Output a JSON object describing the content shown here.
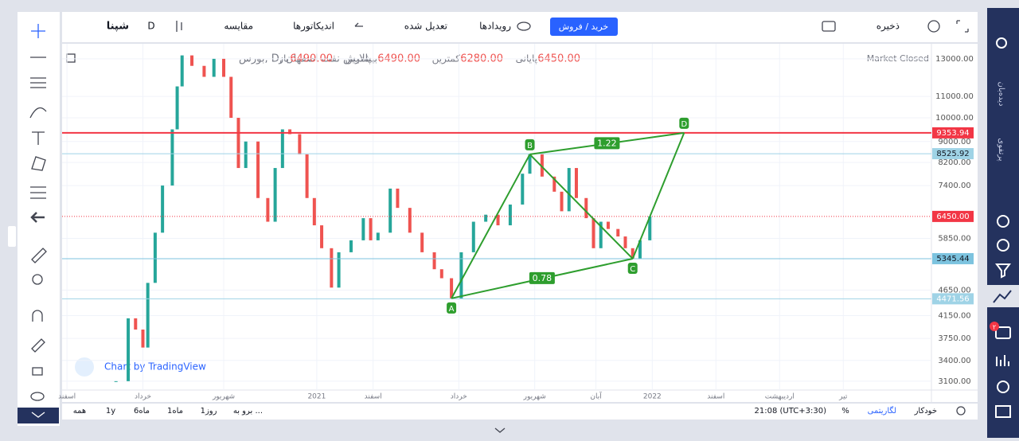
{
  "toolbar": {
    "symbol": "شپنا",
    "interval": "D",
    "compare": "مقایسه",
    "indicators": "اندیکاتورها",
    "adjusted": "تعدیل شده",
    "events": "رویدادها",
    "trade": "خرید / فروش",
    "save": "ذخیره"
  },
  "legend": {
    "title": "پالایش نفت اصفهان ,D ,بورس",
    "open_label": "باز",
    "open": "6490.00",
    "high_label": "بیشترین",
    "high": "6490.00",
    "low_label": "کمترین",
    "low": "6280.00",
    "close_label": "پایانی",
    "close": "6450.00",
    "status": "Market Closed"
  },
  "watermark": "Chart by TradingView",
  "bottom": {
    "ranges": [
      "همه",
      "1y",
      "6ماه",
      "1ماه",
      "1روز"
    ],
    "goto": "برو به ...",
    "time": "21:08 (UTC+3:30)",
    "percent": "%",
    "log": "لگاریتمی",
    "auto": "خودکار"
  },
  "sidebar": {
    "watchlist": "دیده‌بان",
    "portfolio": "پرتفوی",
    "badge": "۲"
  },
  "chart_data": {
    "type": "candlestick",
    "log": true,
    "grid": true,
    "up_color": "#26a69a",
    "down_color": "#ef5350",
    "x": [
      2.2,
      2.7,
      3.0,
      3.3,
      3.5,
      3.8,
      4.1,
      4.5,
      4.7,
      4.9,
      5.3,
      5.8,
      6.2,
      6.6,
      6.9,
      7.2,
      7.5,
      8.0,
      8.4,
      8.7,
      9.0,
      9.3,
      9.7,
      10.0,
      10.3,
      10.6,
      11.0,
      11.3,
      11.8,
      12.3,
      12.6,
      12.9,
      13.4,
      13.7,
      14.2,
      14.7,
      15.2,
      15.5,
      15.9,
      16.3,
      16.8,
      17.3,
      17.8,
      18.3,
      18.8,
      19.1,
      19.6,
      20.1,
      20.4,
      20.7,
      21.0,
      21.4,
      21.7,
      22.0,
      22.3,
      22.7,
      23.0,
      23.3,
      23.6,
      24.0
    ],
    "values": [
      3100,
      4100,
      3900,
      3600,
      4800,
      6000,
      7400,
      9500,
      11500,
      13200,
      12600,
      12000,
      13000,
      12000,
      10000,
      8000,
      9000,
      7000,
      6300,
      8000,
      9500,
      9300,
      8500,
      7000,
      6200,
      5600,
      4700,
      5500,
      5800,
      6400,
      5800,
      6000,
      7300,
      6700,
      6000,
      5500,
      5100,
      4900,
      4480,
      5500,
      6300,
      6500,
      6200,
      6800,
      7800,
      8500,
      7700,
      7200,
      6600,
      8000,
      7000,
      6400,
      5600,
      6300,
      6100,
      5900,
      5600,
      5345,
      5800,
      6450
    ],
    "xlim": [
      0,
      35.5
    ],
    "ylim": [
      2980,
      13900
    ],
    "xticks": [
      {
        "value": 0.2,
        "label": "اسفند"
      },
      {
        "value": 3.3,
        "label": "خرداد"
      },
      {
        "value": 6.6,
        "label": "شهریور"
      },
      {
        "value": 10.4,
        "label": "2021"
      },
      {
        "value": 12.7,
        "label": "اسفند"
      },
      {
        "value": 16.2,
        "label": "خرداد"
      },
      {
        "value": 19.3,
        "label": "شهریور"
      },
      {
        "value": 21.8,
        "label": "آبان"
      },
      {
        "value": 24.1,
        "label": "2022"
      },
      {
        "value": 26.7,
        "label": "اسفند"
      },
      {
        "value": 29.3,
        "label": "اردیبهشت"
      },
      {
        "value": 31.9,
        "label": "تیر"
      }
    ],
    "yticks": [
      {
        "value": 3100,
        "label": "3100.00"
      },
      {
        "value": 3400,
        "label": "3400.00"
      },
      {
        "value": 3750,
        "label": "3750.00"
      },
      {
        "value": 4150,
        "label": "4150.00"
      },
      {
        "value": 4650,
        "label": "4650.00"
      },
      {
        "value": 5850,
        "label": "5850.00"
      },
      {
        "value": 7400,
        "label": "7400.00"
      },
      {
        "value": 8200,
        "label": "8200.00"
      },
      {
        "value": 9000,
        "label": "9000.00"
      },
      {
        "value": 10000,
        "label": "10000.00"
      },
      {
        "value": 11000,
        "label": "11000.00"
      },
      {
        "value": 13000,
        "label": "13000.00"
      }
    ],
    "hlines": [
      {
        "value": 9353.94,
        "color": "#f23645"
      },
      {
        "value": 8525.92,
        "color": "#9fd3e6"
      },
      {
        "value": {
          "value": 6450,
          "label": "6450.00"
        },
        "color": "#f23645"
      },
      {
        "value": 5345.44,
        "color": "#7cc3df"
      },
      {
        "value": 4471.56,
        "color": "#9fd3e6"
      }
    ],
    "pattern": {
      "color": "#2e9e2e",
      "points": [
        {
          "label": "A",
          "x": 15.9,
          "y": 4480
        },
        {
          "label": "B",
          "x": 19.1,
          "y": 8500
        },
        {
          "label": "C",
          "x": 23.3,
          "y": 5345
        },
        {
          "label": "D",
          "x": 25.4,
          "y": 9354
        }
      ],
      "ratios": [
        1.22,
        0.78
      ]
    }
  }
}
